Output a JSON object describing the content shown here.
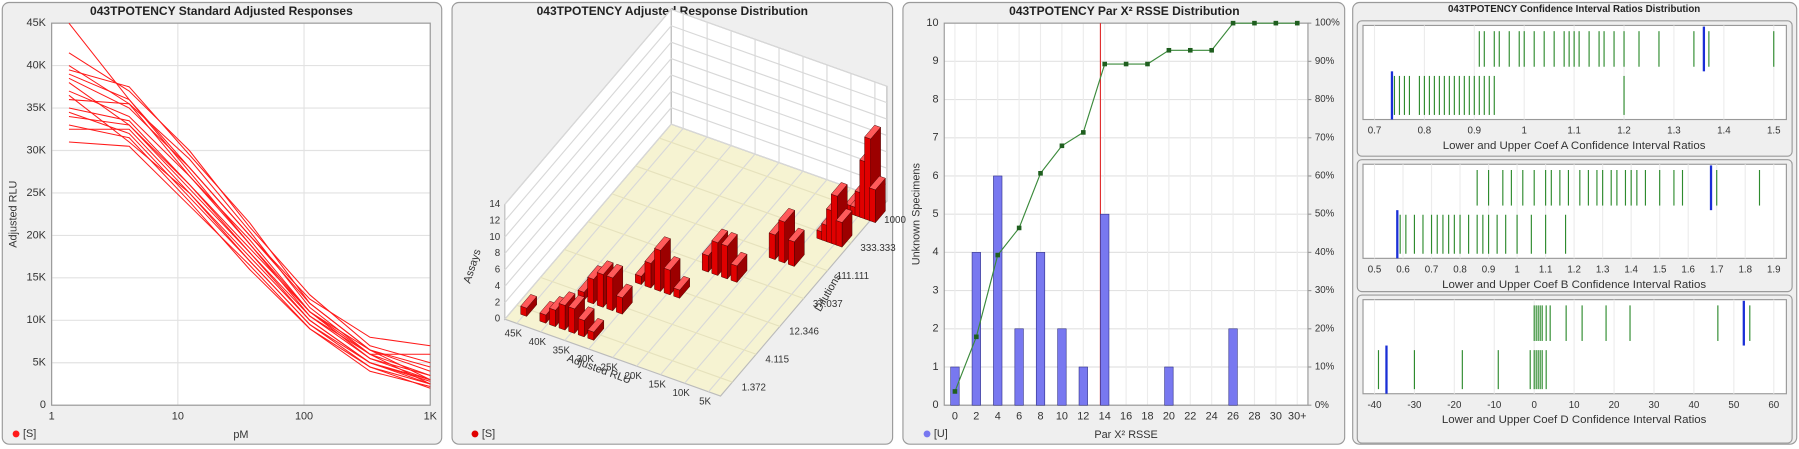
{
  "chart_data": [
    {
      "type": "line",
      "title": "043TPOTENCY Standard Adjusted Responses",
      "y_label": "Adjusted RLU",
      "x_label": "pM",
      "legend_label": "[S]",
      "color": "#ff1a1a",
      "log_x": true,
      "grid": true,
      "x": [
        1.372,
        4.115,
        12.346,
        37.037,
        111.111,
        333.333,
        1000
      ],
      "xlim": [
        1,
        1000
      ],
      "xticks": [
        1,
        10,
        100,
        {
          "value": 1000,
          "label": "1K"
        }
      ],
      "ylim": [
        0,
        45000
      ],
      "yticks": [
        0,
        {
          "value": 5000,
          "label": "5K"
        },
        {
          "value": 10000,
          "label": "10K"
        },
        {
          "value": 15000,
          "label": "15K"
        },
        {
          "value": 20000,
          "label": "20K"
        },
        {
          "value": 25000,
          "label": "25K"
        },
        {
          "value": 30000,
          "label": "30K"
        },
        {
          "value": 35000,
          "label": "35K"
        },
        {
          "value": 40000,
          "label": "40K"
        },
        {
          "value": 45000,
          "label": "45K"
        }
      ],
      "series": [
        {
          "values": [
            45000,
            36000,
            28000,
            20000,
            12000,
            6500,
            3000
          ]
        },
        {
          "values": [
            41500,
            37000,
            30000,
            21000,
            13000,
            7000,
            5000
          ]
        },
        {
          "values": [
            40000,
            35500,
            29000,
            20500,
            11500,
            6000,
            3500
          ]
        },
        {
          "values": [
            39000,
            36000,
            27500,
            19000,
            11000,
            6000,
            2500
          ]
        },
        {
          "values": [
            38500,
            35000,
            28000,
            20000,
            12500,
            8000,
            7000
          ]
        },
        {
          "values": [
            38000,
            33000,
            26000,
            18000,
            10000,
            5000,
            2800
          ]
        },
        {
          "values": [
            37000,
            34000,
            27000,
            19500,
            11000,
            5500,
            3000
          ]
        },
        {
          "values": [
            36500,
            31000,
            25000,
            17500,
            10000,
            5000,
            2500
          ]
        },
        {
          "values": [
            36000,
            35500,
            27000,
            19000,
            10500,
            5500,
            3500
          ]
        },
        {
          "values": [
            35000,
            33500,
            26000,
            18500,
            11000,
            6500,
            4000
          ]
        },
        {
          "values": [
            34500,
            32000,
            24500,
            17000,
            9500,
            4500,
            2000
          ]
        },
        {
          "values": [
            34000,
            33000,
            25500,
            18000,
            10500,
            6000,
            6000
          ]
        },
        {
          "values": [
            33000,
            31500,
            24000,
            16000,
            9000,
            4500,
            2500
          ]
        },
        {
          "values": [
            32500,
            32500,
            25000,
            17000,
            9500,
            5000,
            3000
          ]
        },
        {
          "values": [
            31000,
            30500,
            23500,
            16500,
            9000,
            4000,
            2200
          ]
        },
        {
          "values": [
            39500,
            37500,
            29500,
            21500,
            12000,
            6500,
            4500
          ]
        }
      ]
    },
    {
      "type": "bar3d",
      "title": "043TPOTENCY Adjusted Response Distribution",
      "x_label": "Adjusted RLU",
      "y_label": "Dilutions",
      "z_label": "Assays",
      "legend_label": "[S]",
      "color": "#e00000",
      "dilutions": [
        "1.372",
        "4.115",
        "12.346",
        "37.037",
        "111.111",
        "333.333",
        "1000"
      ],
      "xlim": [
        47500,
        2500
      ],
      "xticks": [
        {
          "value": 45000,
          "label": "45K"
        },
        {
          "value": 40000,
          "label": "40K"
        },
        {
          "value": 35000,
          "label": "35K"
        },
        {
          "value": 30000,
          "label": "30K"
        },
        {
          "value": 25000,
          "label": "25K"
        },
        {
          "value": 20000,
          "label": "20K"
        },
        {
          "value": 15000,
          "label": "15K"
        },
        {
          "value": 10000,
          "label": "10K"
        },
        {
          "value": 5000,
          "label": "5K"
        }
      ],
      "zlim": [
        0,
        14
      ],
      "zticks": [
        0,
        2,
        4,
        6,
        8,
        10,
        12,
        14
      ],
      "series": [
        {
          "x": [
            45000,
            41000,
            39000,
            37000,
            35000,
            33000,
            31000
          ],
          "values": [
            1,
            1,
            2,
            3,
            3,
            2,
            1
          ]
        },
        {
          "x": [
            38000,
            36000,
            34000,
            32000,
            30000
          ],
          "values": [
            1,
            3,
            4,
            4,
            2
          ]
        },
        {
          "x": [
            31000,
            29000,
            27000,
            25000,
            23000
          ],
          "values": [
            1,
            3,
            5,
            3,
            1
          ]
        },
        {
          "x": [
            22000,
            20000,
            18000,
            16000
          ],
          "values": [
            2,
            4,
            4,
            2
          ]
        },
        {
          "x": [
            13000,
            11000,
            9000
          ],
          "values": [
            3,
            5,
            3
          ]
        },
        {
          "x": [
            8000,
            7000,
            6000,
            5000,
            4000
          ],
          "values": [
            1,
            2,
            4,
            6,
            3
          ]
        },
        {
          "x": [
            7000,
            6000,
            5000,
            4000,
            3000,
            2000
          ],
          "values": [
            1,
            1,
            3,
            7,
            10,
            4
          ]
        }
      ]
    },
    {
      "type": "bar_line",
      "title": "043TPOTENCY Par X² RSSE Distribution",
      "x_label": "Par X² RSSE",
      "y_label": "Unknown Specimens",
      "legend_label": "[U]",
      "grid": true,
      "x": [
        0,
        2,
        4,
        6,
        8,
        10,
        12,
        14,
        16,
        18,
        20,
        22,
        24,
        26,
        28,
        30,
        32
      ],
      "xlim": [
        -1,
        33
      ],
      "xticks": [
        0,
        2,
        4,
        6,
        8,
        10,
        12,
        14,
        16,
        18,
        20,
        22,
        24,
        26,
        28,
        30,
        {
          "value": 32,
          "label": "30+"
        }
      ],
      "ylim": [
        0,
        10
      ],
      "yticks": [
        0,
        1,
        2,
        3,
        4,
        5,
        6,
        7,
        8,
        9,
        10
      ],
      "y2lim": [
        0,
        100
      ],
      "y2ticks": [
        {
          "value": 0,
          "label": "0%"
        },
        {
          "value": 10,
          "label": "10%"
        },
        {
          "value": 20,
          "label": "20%"
        },
        {
          "value": 30,
          "label": "30%"
        },
        {
          "value": 40,
          "label": "40%"
        },
        {
          "value": 50,
          "label": "50%"
        },
        {
          "value": 60,
          "label": "60%"
        },
        {
          "value": 70,
          "label": "70%"
        },
        {
          "value": 80,
          "label": "80%"
        },
        {
          "value": 90,
          "label": "90%"
        },
        {
          "value": 100,
          "label": "100%"
        }
      ],
      "reference_line": 13.6,
      "reference_color": "#e03030",
      "series": [
        {
          "type": "bar",
          "color": "#7878f0",
          "values": [
            1,
            4,
            6,
            2,
            4,
            2,
            1,
            5,
            0,
            0,
            1,
            0,
            0,
            2,
            0,
            0,
            0
          ]
        },
        {
          "type": "line",
          "color": "#3b8a3b",
          "axis": "y2",
          "values": [
            3.6,
            17.9,
            39.3,
            46.4,
            60.7,
            67.9,
            71.4,
            89.3,
            89.3,
            89.3,
            92.9,
            92.9,
            92.9,
            100,
            100,
            100,
            100
          ]
        }
      ]
    },
    {
      "type": "strip",
      "title": "043TPOTENCY Confidence Interval Ratios Distribution",
      "color": "#2e8b2e",
      "highlight_color": "#1a2fd6",
      "panels": [
        {
          "x_label": "Lower and Upper Coef A Confidence Interval Ratios",
          "xlim": [
            0.7,
            1.5
          ],
          "xticks": [
            0.7,
            0.8,
            0.9,
            1,
            1.1,
            1.2,
            1.3,
            1.4,
            1.5
          ],
          "rows": [
            {
              "values": [
                0.91,
                0.92,
                0.94,
                0.95,
                0.97,
                0.99,
                1.0,
                1.02,
                1.04,
                1.06,
                1.08,
                1.09,
                1.1,
                1.11,
                1.13,
                1.15,
                1.16,
                1.18,
                1.2,
                1.23,
                1.27,
                1.34,
                1.37,
                1.5
              ]
            },
            {
              "values": [
                0.74,
                0.75,
                0.76,
                0.77,
                0.79,
                0.8,
                0.81,
                0.82,
                0.83,
                0.84,
                0.85,
                0.86,
                0.87,
                0.88,
                0.89,
                0.9,
                0.91,
                0.92,
                0.93,
                0.94,
                1.2
              ]
            }
          ],
          "highlights": [
            1.36,
            0.735
          ]
        },
        {
          "x_label": "Lower and Upper Coef B Confidence Interval Ratios",
          "xlim": [
            0.5,
            1.9
          ],
          "xticks": [
            0.5,
            0.6,
            0.7,
            0.8,
            0.9,
            1,
            1.1,
            1.2,
            1.3,
            1.4,
            1.5,
            1.6,
            1.7,
            1.8,
            1.9
          ],
          "rows": [
            {
              "values": [
                0.86,
                0.9,
                0.95,
                0.98,
                1.02,
                1.06,
                1.1,
                1.12,
                1.15,
                1.18,
                1.22,
                1.25,
                1.28,
                1.3,
                1.33,
                1.35,
                1.38,
                1.4,
                1.42,
                1.45,
                1.5,
                1.55,
                1.58,
                1.7,
                1.85
              ]
            },
            {
              "values": [
                0.59,
                0.61,
                0.64,
                0.67,
                0.7,
                0.72,
                0.74,
                0.76,
                0.78,
                0.8,
                0.83,
                0.86,
                0.88,
                0.9,
                0.93,
                0.96,
                1.0,
                1.05,
                1.1,
                1.17
              ]
            }
          ],
          "highlights": [
            1.68,
            0.58
          ]
        },
        {
          "x_label": "Lower and Upper Coef D Confidence Interval Ratios",
          "xlim": [
            -40,
            60
          ],
          "xticks": [
            -40,
            -30,
            -20,
            -10,
            0,
            10,
            20,
            30,
            40,
            50,
            60
          ],
          "rows": [
            {
              "values": [
                0,
                0.5,
                1,
                1.5,
                2,
                3,
                4,
                8,
                12,
                18,
                24,
                46,
                54
              ]
            },
            {
              "values": [
                -39,
                -30,
                -18,
                -9,
                -1,
                0,
                0.5,
                1,
                1.5,
                2,
                3
              ]
            }
          ],
          "highlights": [
            52.5,
            -37
          ]
        }
      ]
    }
  ]
}
